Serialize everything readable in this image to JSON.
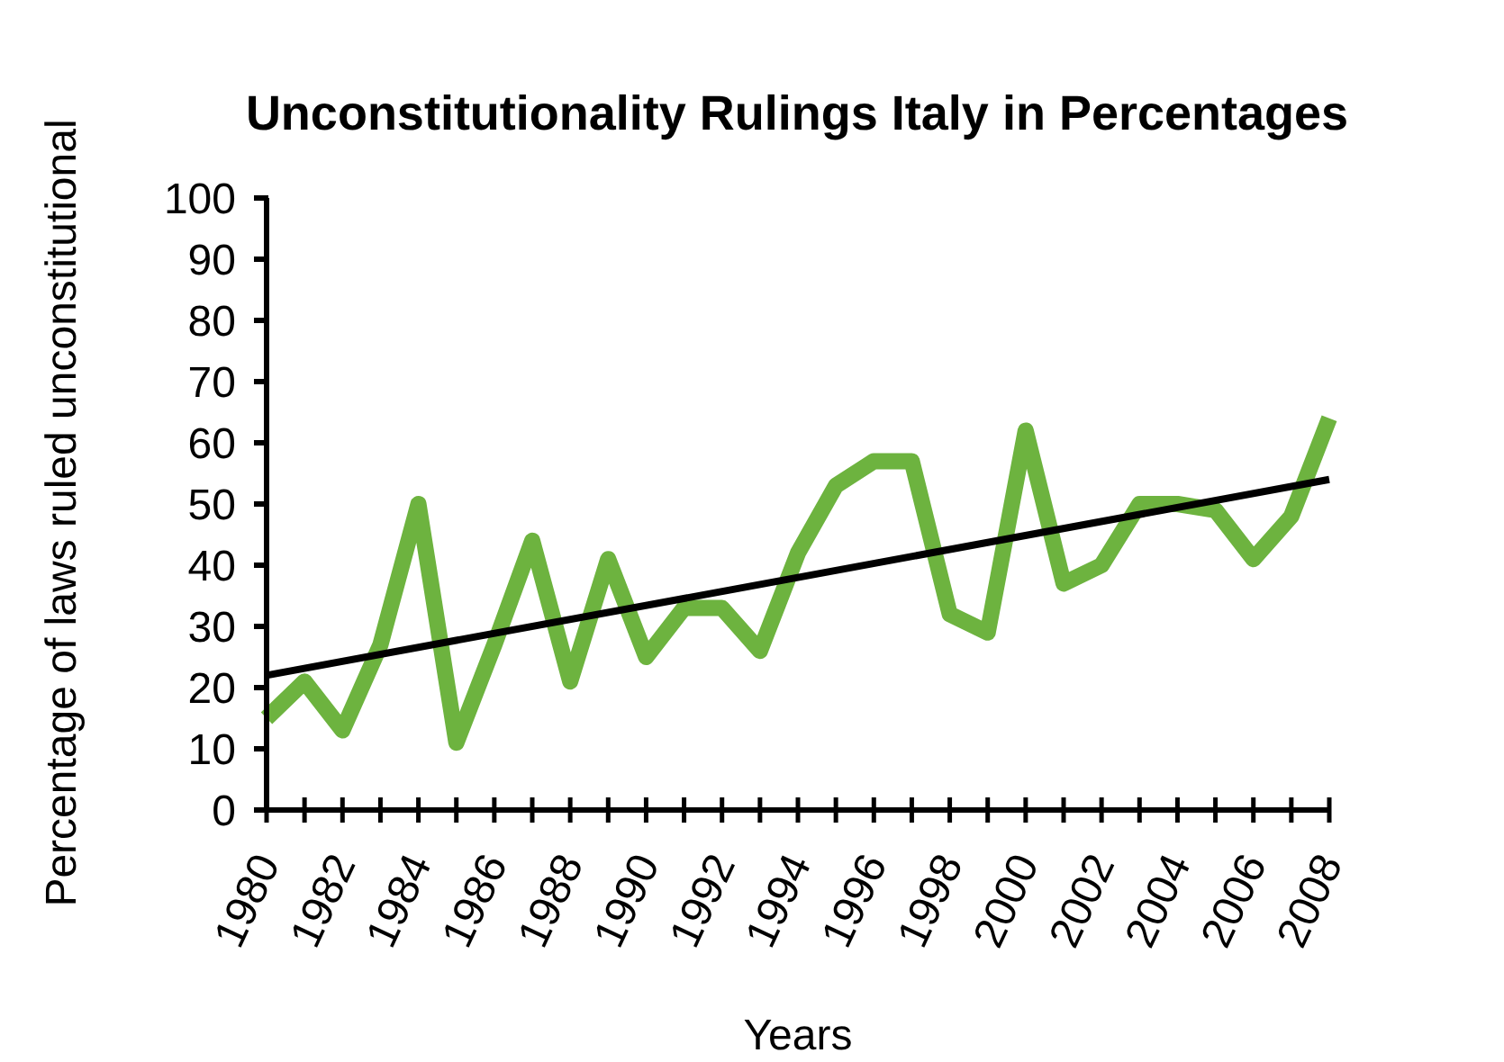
{
  "chart_data": {
    "type": "line",
    "title": "Unconstitutionality Rulings Italy in Percentages",
    "xlabel": "Years",
    "ylabel": "Percentage of laws ruled unconstitutional",
    "xlim": [
      1980,
      2008
    ],
    "xticks": [
      1980,
      {
        "value": 1981,
        "label": null
      },
      1982,
      {
        "value": 1983,
        "label": null
      },
      1984,
      {
        "value": 1985,
        "label": null
      },
      1986,
      {
        "value": 1987,
        "label": null
      },
      1988,
      {
        "value": 1989,
        "label": null
      },
      1990,
      {
        "value": 1991,
        "label": null
      },
      1992,
      {
        "value": 1993,
        "label": null
      },
      1994,
      {
        "value": 1995,
        "label": null
      },
      1996,
      {
        "value": 1997,
        "label": null
      },
      1998,
      {
        "value": 1999,
        "label": null
      },
      2000,
      {
        "value": 2001,
        "label": null
      },
      2002,
      {
        "value": 2003,
        "label": null
      },
      2004,
      {
        "value": 2005,
        "label": null
      },
      2006,
      {
        "value": 2007,
        "label": null
      },
      2008
    ],
    "ylim": [
      0,
      100
    ],
    "yticks": [
      0,
      10,
      20,
      30,
      40,
      50,
      60,
      70,
      80,
      90,
      100
    ],
    "grid": false,
    "marker": "none",
    "line_style": "solid",
    "x": [
      1980,
      1981,
      1982,
      1983,
      1984,
      1985,
      1986,
      1987,
      1988,
      1989,
      1990,
      1991,
      1992,
      1993,
      1994,
      1995,
      1996,
      1997,
      1998,
      1999,
      2000,
      2001,
      2002,
      2003,
      2004,
      2005,
      2006,
      2007,
      2008
    ],
    "series": [
      {
        "color": "#6db33f",
        "values": [
          15,
          21,
          13,
          27,
          50,
          11,
          27,
          44,
          21,
          41,
          25,
          33,
          33,
          26,
          42,
          53,
          57,
          57,
          32,
          29,
          62,
          37,
          40,
          50,
          50,
          49,
          41,
          48,
          64
        ]
      },
      {
        "type": "line",
        "color": "#000000",
        "x": [
          1980,
          2008
        ],
        "values": [
          22,
          54
        ]
      }
    ]
  }
}
